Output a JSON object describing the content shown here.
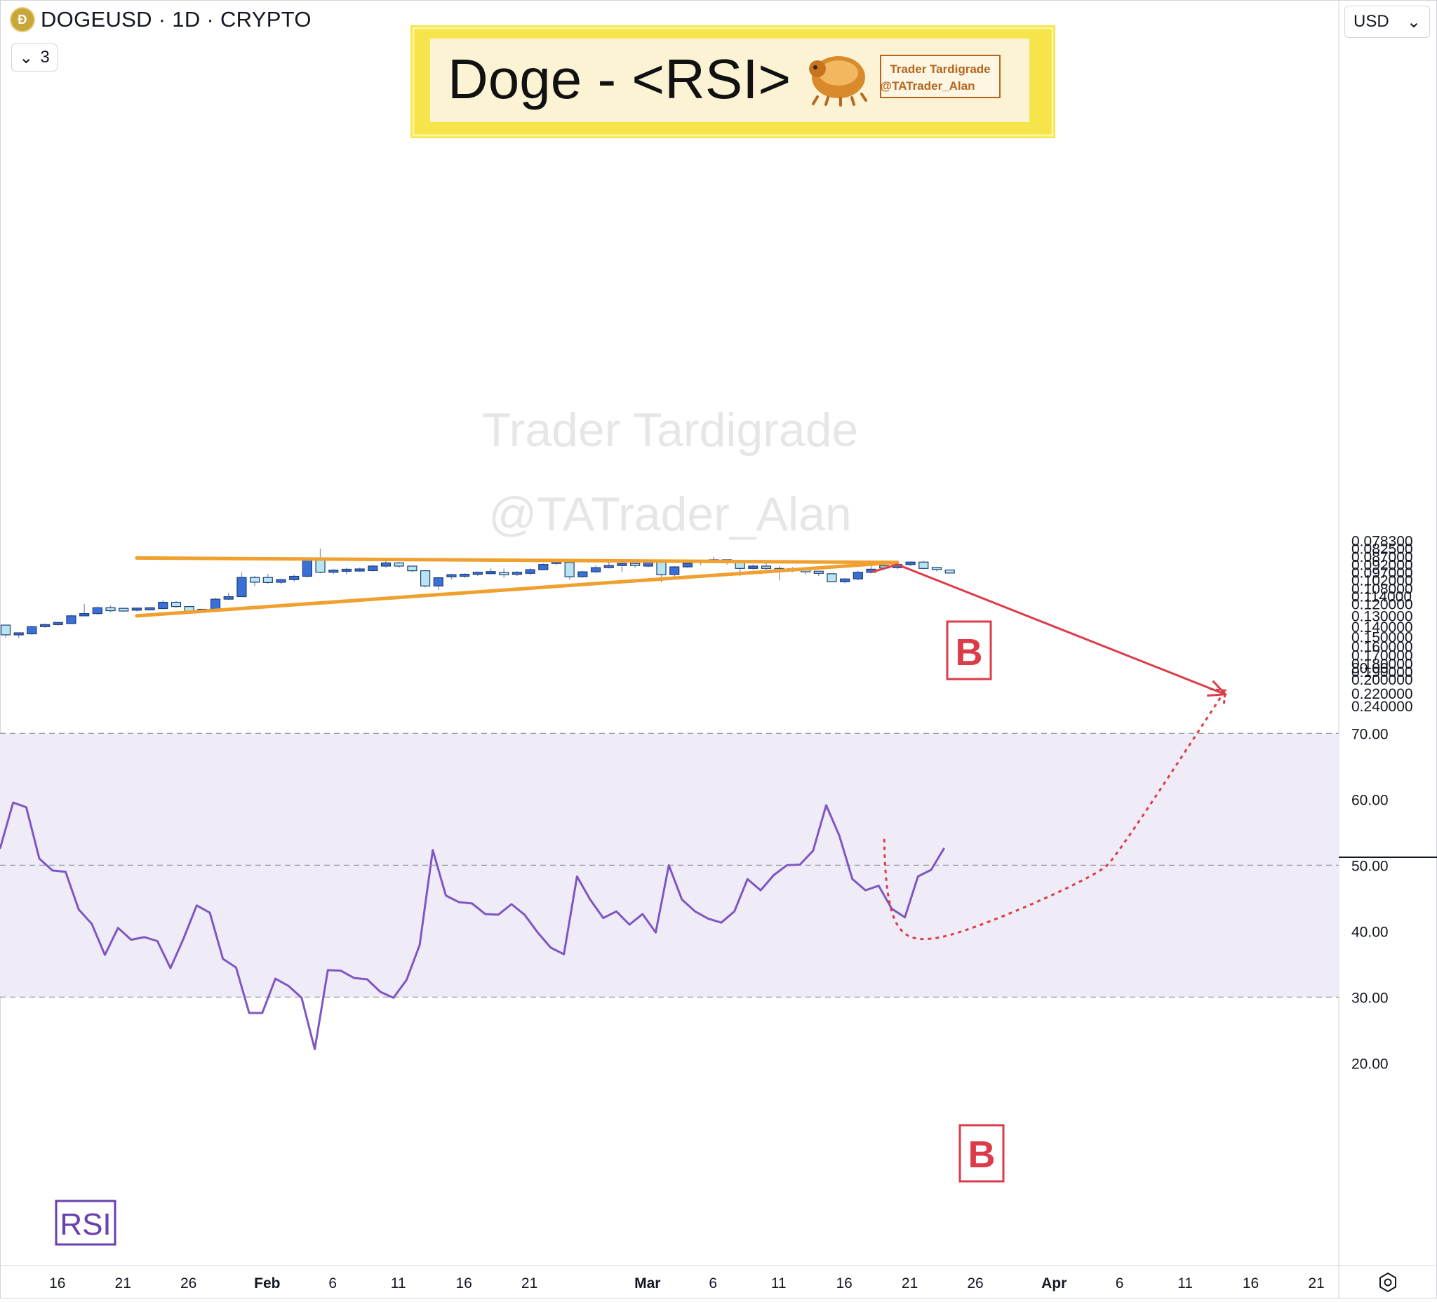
{
  "header": {
    "symbol": "DOGEUSD · 1D · CRYPTO",
    "coin_glyph": "Ð",
    "indicator_count": "3",
    "currency": "USD"
  },
  "banner": {
    "title": "Doge - <RSI>",
    "author_line1": "Trader Tardigrade",
    "author_line2": "@TATrader_Alan",
    "bg_color": "#fbf3d4",
    "border_color": "#f6e44b"
  },
  "watermark": {
    "line1": "Trader Tardigrade",
    "line2": "@TATrader_Alan"
  },
  "annotations": {
    "price_marker": "B",
    "rsi_marker": "B",
    "rsi_label": "RSI"
  },
  "colors": {
    "up_fill": "#b8e5ef",
    "down_fill": "#3a6fd8",
    "candle_outline": "#1c3d7a",
    "triangle": "#f0a02e",
    "projection": "#dc3c49",
    "rsi_line": "#7e57c2",
    "rsi_band": "#efecf7"
  },
  "chart_data": [
    {
      "type": "candlestick",
      "title": "DOGEUSD · 1D · CRYPTO",
      "price_axis_ticks": [
        "0.240000",
        "0.220000",
        "0.200000",
        "0.190000",
        "0.180000",
        "0.170000",
        "0.160000",
        "0.150000",
        "0.140000",
        "0.130000",
        "0.120000",
        "0.114000",
        "0.108000",
        "0.102000",
        "0.097000",
        "0.092000",
        "0.087000",
        "0.082500",
        "0.078300"
      ],
      "ylim": [
        0.0783,
        0.245
      ],
      "time_axis_ticks": [
        "16",
        "21",
        "26",
        "Feb",
        "6",
        "11",
        "16",
        "21",
        "Mar",
        "6",
        "11",
        "16",
        "21",
        "26",
        "Apr",
        "6",
        "11",
        "16",
        "21"
      ],
      "x_range_days": [
        "2024-01-12",
        "2024-04-25"
      ],
      "candles": [
        {
          "date": "2024-01-12",
          "open": 0.1395,
          "high": 0.152,
          "low": 0.1395,
          "close": 0.149
        },
        {
          "date": "2024-01-13",
          "open": 0.149,
          "high": 0.1525,
          "low": 0.147,
          "close": 0.148
        },
        {
          "date": "2024-01-14",
          "open": 0.148,
          "high": 0.149,
          "low": 0.14,
          "close": 0.141
        },
        {
          "date": "2024-01-15",
          "open": 0.141,
          "high": 0.142,
          "low": 0.138,
          "close": 0.139
        },
        {
          "date": "2024-01-16",
          "open": 0.139,
          "high": 0.14,
          "low": 0.137,
          "close": 0.138
        },
        {
          "date": "2024-01-17",
          "open": 0.138,
          "high": 0.1385,
          "low": 0.13,
          "close": 0.131
        },
        {
          "date": "2024-01-18",
          "open": 0.131,
          "high": 0.1315,
          "low": 0.121,
          "close": 0.129
        },
        {
          "date": "2024-01-19",
          "open": 0.129,
          "high": 0.13,
          "low": 0.123,
          "close": 0.124
        },
        {
          "date": "2024-01-20",
          "open": 0.124,
          "high": 0.128,
          "low": 0.122,
          "close": 0.1265
        },
        {
          "date": "2024-01-21",
          "open": 0.1245,
          "high": 0.1275,
          "low": 0.124,
          "close": 0.1268
        },
        {
          "date": "2024-01-22",
          "open": 0.1254,
          "high": 0.127,
          "low": 0.1242,
          "close": 0.1252
        },
        {
          "date": "2024-01-23",
          "open": 0.1252,
          "high": 0.1262,
          "low": 0.1238,
          "close": 0.1249
        },
        {
          "date": "2024-01-24",
          "open": 0.1247,
          "high": 0.1253,
          "low": 0.118,
          "close": 0.1195
        },
        {
          "date": "2024-01-25",
          "open": 0.1195,
          "high": 0.124,
          "low": 0.1185,
          "close": 0.123
        },
        {
          "date": "2024-01-26",
          "open": 0.123,
          "high": 0.128,
          "low": 0.1225,
          "close": 0.127
        },
        {
          "date": "2024-01-27",
          "open": 0.1272,
          "high": 0.1282,
          "low": 0.1258,
          "close": 0.1262
        },
        {
          "date": "2024-01-28",
          "open": 0.1262,
          "high": 0.1265,
          "low": 0.116,
          "close": 0.117
        },
        {
          "date": "2024-01-29",
          "open": 0.117,
          "high": 0.1175,
          "low": 0.112,
          "close": 0.115
        },
        {
          "date": "2024-01-30",
          "open": 0.115,
          "high": 0.1152,
          "low": 0.0975,
          "close": 0.101
        },
        {
          "date": "2024-01-31",
          "open": 0.101,
          "high": 0.107,
          "low": 0.1,
          "close": 0.1043
        },
        {
          "date": "2024-02-01",
          "open": 0.101,
          "high": 0.1055,
          "low": 0.0985,
          "close": 0.1045
        },
        {
          "date": "2024-02-02",
          "open": 0.1043,
          "high": 0.1058,
          "low": 0.1018,
          "close": 0.1025
        },
        {
          "date": "2024-02-03",
          "open": 0.1025,
          "high": 0.104,
          "low": 0.099,
          "close": 0.1002
        },
        {
          "date": "2024-02-04",
          "open": 0.1002,
          "high": 0.101,
          "low": 0.0886,
          "close": 0.0892
        },
        {
          "date": "2024-02-05",
          "open": 0.0892,
          "high": 0.0982,
          "low": 0.083,
          "close": 0.0975
        },
        {
          "date": "2024-02-06",
          "open": 0.0975,
          "high": 0.0985,
          "low": 0.0955,
          "close": 0.0968
        },
        {
          "date": "2024-02-07",
          "open": 0.0975,
          "high": 0.0988,
          "low": 0.0945,
          "close": 0.0962
        },
        {
          "date": "2024-02-08",
          "open": 0.0966,
          "high": 0.0972,
          "low": 0.0944,
          "close": 0.096
        },
        {
          "date": "2024-02-09",
          "open": 0.0964,
          "high": 0.097,
          "low": 0.0925,
          "close": 0.0935
        },
        {
          "date": "2024-02-10",
          "open": 0.0935,
          "high": 0.0945,
          "low": 0.089,
          "close": 0.0915
        },
        {
          "date": "2024-02-11",
          "open": 0.0915,
          "high": 0.0945,
          "low": 0.091,
          "close": 0.0935
        },
        {
          "date": "2024-02-12",
          "open": 0.0935,
          "high": 0.0975,
          "low": 0.0935,
          "close": 0.0965
        },
        {
          "date": "2024-02-13",
          "open": 0.0965,
          "high": 0.108,
          "low": 0.096,
          "close": 0.107
        },
        {
          "date": "2024-02-14",
          "open": 0.107,
          "high": 0.11,
          "low": 0.1005,
          "close": 0.1012
        },
        {
          "date": "2024-02-15",
          "open": 0.1012,
          "high": 0.1025,
          "low": 0.0985,
          "close": 0.0998
        },
        {
          "date": "2024-02-16",
          "open": 0.0998,
          "high": 0.1012,
          "low": 0.0982,
          "close": 0.0995
        },
        {
          "date": "2024-02-17",
          "open": 0.0995,
          "high": 0.1,
          "low": 0.097,
          "close": 0.0982
        },
        {
          "date": "2024-02-18",
          "open": 0.098,
          "high": 0.0984,
          "low": 0.095,
          "close": 0.0977
        },
        {
          "date": "2024-02-19",
          "open": 0.0977,
          "high": 0.1012,
          "low": 0.095,
          "close": 0.0992
        },
        {
          "date": "2024-02-20",
          "open": 0.0992,
          "high": 0.1,
          "low": 0.0968,
          "close": 0.0982
        },
        {
          "date": "2024-02-21",
          "open": 0.0982,
          "high": 0.0992,
          "low": 0.0945,
          "close": 0.0958
        },
        {
          "date": "2024-02-22",
          "open": 0.0958,
          "high": 0.0962,
          "low": 0.0918,
          "close": 0.0925
        },
        {
          "date": "2024-02-23",
          "open": 0.0925,
          "high": 0.093,
          "low": 0.0902,
          "close": 0.0912
        },
        {
          "date": "2024-02-24",
          "open": 0.0912,
          "high": 0.1025,
          "low": 0.091,
          "close": 0.1005
        },
        {
          "date": "2024-02-25",
          "open": 0.1005,
          "high": 0.1012,
          "low": 0.0965,
          "close": 0.0972
        },
        {
          "date": "2024-02-26",
          "open": 0.0972,
          "high": 0.098,
          "low": 0.0932,
          "close": 0.0945
        },
        {
          "date": "2024-02-27",
          "open": 0.0945,
          "high": 0.095,
          "low": 0.0905,
          "close": 0.0938
        },
        {
          "date": "2024-02-28",
          "open": 0.0938,
          "high": 0.0975,
          "low": 0.0915,
          "close": 0.0925
        },
        {
          "date": "2024-02-29",
          "open": 0.0925,
          "high": 0.0945,
          "low": 0.0918,
          "close": 0.0935
        },
        {
          "date": "2024-03-01",
          "open": 0.0935,
          "high": 0.0942,
          "low": 0.09,
          "close": 0.091
        },
        {
          "date": "2024-03-02",
          "open": 0.091,
          "high": 0.1045,
          "low": 0.0902,
          "close": 0.0992
        },
        {
          "date": "2024-03-03",
          "open": 0.099,
          "high": 0.1002,
          "low": 0.0935,
          "close": 0.094
        },
        {
          "date": "2024-03-04",
          "open": 0.094,
          "high": 0.0945,
          "low": 0.0912,
          "close": 0.0918
        },
        {
          "date": "2024-03-05",
          "open": 0.0918,
          "high": 0.093,
          "low": 0.0905,
          "close": 0.0906
        },
        {
          "date": "2024-03-06",
          "open": 0.0906,
          "high": 0.091,
          "low": 0.0878,
          "close": 0.0902
        },
        {
          "date": "2024-03-07",
          "open": 0.0902,
          "high": 0.0925,
          "low": 0.09,
          "close": 0.091
        },
        {
          "date": "2024-03-08",
          "open": 0.091,
          "high": 0.1,
          "low": 0.0905,
          "close": 0.095
        },
        {
          "date": "2024-03-09",
          "open": 0.095,
          "high": 0.096,
          "low": 0.0925,
          "close": 0.0935
        },
        {
          "date": "2024-03-10",
          "open": 0.0935,
          "high": 0.0958,
          "low": 0.0918,
          "close": 0.095
        },
        {
          "date": "2024-03-11",
          "open": 0.095,
          "high": 0.103,
          "low": 0.0935,
          "close": 0.0965
        },
        {
          "date": "2024-03-12",
          "open": 0.0965,
          "high": 0.0975,
          "low": 0.094,
          "close": 0.0958
        },
        {
          "date": "2024-03-13",
          "open": 0.0965,
          "high": 0.099,
          "low": 0.096,
          "close": 0.0975
        },
        {
          "date": "2024-03-14",
          "open": 0.0975,
          "high": 0.1,
          "low": 0.097,
          "close": 0.0985
        },
        {
          "date": "2024-03-15",
          "open": 0.0985,
          "high": 0.1045,
          "low": 0.098,
          "close": 0.104
        },
        {
          "date": "2024-03-16",
          "open": 0.104,
          "high": 0.105,
          "low": 0.1015,
          "close": 0.102
        },
        {
          "date": "2024-03-17",
          "open": 0.102,
          "high": 0.1028,
          "low": 0.0965,
          "close": 0.0975
        },
        {
          "date": "2024-03-18",
          "open": 0.0975,
          "high": 0.0982,
          "low": 0.0935,
          "close": 0.0955
        },
        {
          "date": "2024-03-19",
          "open": 0.094,
          "high": 0.096,
          "low": 0.0925,
          "close": 0.0945
        },
        {
          "date": "2024-03-20",
          "open": 0.0945,
          "high": 0.0955,
          "low": 0.091,
          "close": 0.0925
        },
        {
          "date": "2024-03-21",
          "open": 0.0925,
          "high": 0.0935,
          "low": 0.0905,
          "close": 0.091
        },
        {
          "date": "2024-03-22",
          "open": 0.091,
          "high": 0.0955,
          "low": 0.0902,
          "close": 0.095
        },
        {
          "date": "2024-03-23",
          "open": 0.095,
          "high": 0.097,
          "low": 0.094,
          "close": 0.096
        },
        {
          "date": "2024-03-24",
          "open": 0.096,
          "high": 0.0982,
          "low": 0.0958,
          "close": 0.098
        }
      ],
      "triangle_upper": [
        {
          "date": "2024-01-22",
          "price": 0.131
        },
        {
          "date": "2024-03-20",
          "price": 0.0912
        }
      ],
      "triangle_lower": [
        {
          "date": "2024-01-22",
          "price": 0.0885
        },
        {
          "date": "2024-03-20",
          "price": 0.0912
        }
      ],
      "projection_path": [
        {
          "date": "2024-03-18",
          "price": 0.0975
        },
        {
          "date": "2024-03-20",
          "price": 0.0925
        },
        {
          "date": "2024-04-14",
          "price": 0.223
        }
      ]
    },
    {
      "type": "line",
      "title": "RSI",
      "ylim": [
        20,
        80
      ],
      "y_ticks": [
        "80.00",
        "70.00",
        "60.00",
        "50.00",
        "40.00",
        "30.00",
        "20.00"
      ],
      "band": [
        30,
        70
      ],
      "midline": 50,
      "series": [
        {
          "name": "RSI",
          "start_date": "2024-01-12",
          "values": [
            52.5,
            59.5,
            58.8,
            51.0,
            49.2,
            49.0,
            43.3,
            41.1,
            36.4,
            40.5,
            38.7,
            39.1,
            38.5,
            34.4,
            38.9,
            43.9,
            42.8,
            35.8,
            34.5,
            27.6,
            27.6,
            32.8,
            31.7,
            29.9,
            22.1,
            34.1,
            34.0,
            32.9,
            32.7,
            30.8,
            29.9,
            32.6,
            37.9,
            52.3,
            45.4,
            44.4,
            44.2,
            42.6,
            42.5,
            44.1,
            42.5,
            39.8,
            37.5,
            36.5,
            48.3,
            44.8,
            42.0,
            43.0,
            41.0,
            42.6,
            39.8,
            50.0,
            44.8,
            43.0,
            41.9,
            41.3,
            43.0,
            47.9,
            46.2,
            48.5,
            50.0,
            50.1,
            52.2,
            59.1,
            54.5,
            47.9,
            46.2,
            46.9,
            43.4,
            42.1,
            48.3,
            49.3,
            52.6
          ]
        }
      ],
      "projection_path": [
        {
          "date": "2024-03-19",
          "value": 54.0
        },
        {
          "date": "2024-03-21",
          "value": 40.0
        },
        {
          "date": "2024-03-22",
          "value": 39.0
        },
        {
          "date": "2024-04-05",
          "value": 50.0
        },
        {
          "date": "2024-04-14",
          "value": 76.5
        }
      ]
    }
  ]
}
